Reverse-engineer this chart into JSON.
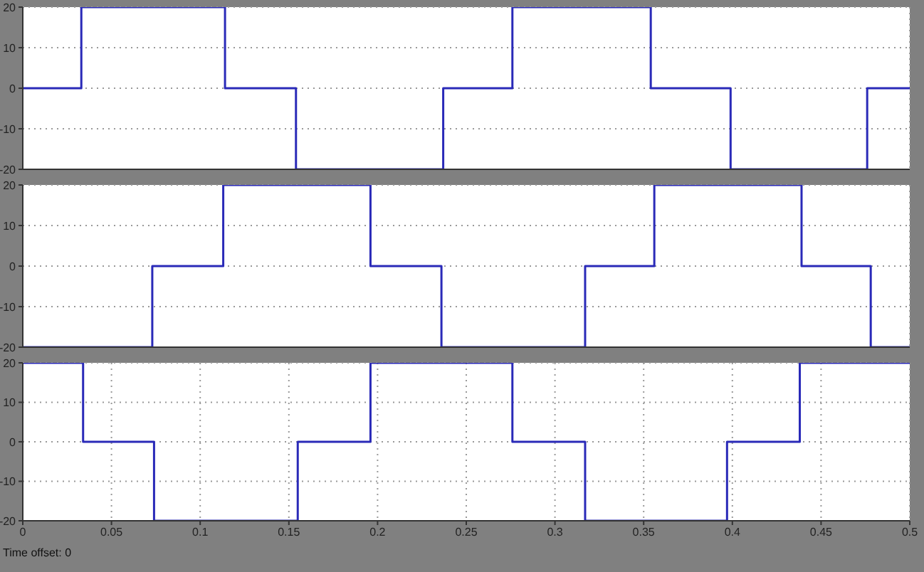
{
  "chart_data": [
    {
      "type": "step",
      "x": [
        0,
        0.033,
        0.114,
        0.154,
        0.237,
        0.276,
        0.354,
        0.399,
        0.476,
        0.5
      ],
      "series": [
        {
          "color": "#2a2ab8",
          "values": [
            0,
            20,
            0,
            -20,
            0,
            20,
            0,
            -20,
            0,
            0
          ]
        }
      ],
      "xlim": [
        0,
        0.5
      ],
      "xticks": [
        0,
        0.05,
        0.1,
        0.15,
        0.2,
        0.25,
        0.3,
        0.35,
        0.4,
        0.45,
        0.5
      ],
      "ylim": [
        -20,
        20
      ],
      "yticks": [
        -20,
        -10,
        0,
        10,
        20
      ],
      "grid": true,
      "marker": "none",
      "tick_labels": "y"
    },
    {
      "type": "step",
      "x": [
        0,
        0.073,
        0.113,
        0.196,
        0.236,
        0.317,
        0.356,
        0.439,
        0.478,
        0.5
      ],
      "series": [
        {
          "color": "#2a2ab8",
          "values": [
            -20,
            0,
            20,
            0,
            -20,
            0,
            20,
            0,
            -20,
            -20
          ]
        }
      ],
      "xlim": [
        0,
        0.5
      ],
      "xticks": [
        0,
        0.05,
        0.1,
        0.15,
        0.2,
        0.25,
        0.3,
        0.35,
        0.4,
        0.45,
        0.5
      ],
      "ylim": [
        -20,
        20
      ],
      "yticks": [
        -20,
        -10,
        0,
        10,
        20
      ],
      "grid": true,
      "marker": "none",
      "tick_labels": "y"
    },
    {
      "type": "step",
      "x": [
        0,
        0.034,
        0.074,
        0.155,
        0.196,
        0.276,
        0.317,
        0.397,
        0.438,
        0.5
      ],
      "series": [
        {
          "color": "#2a2ab8",
          "values": [
            20,
            0,
            -20,
            0,
            20,
            0,
            -20,
            0,
            20,
            20
          ]
        }
      ],
      "xlim": [
        0,
        0.5
      ],
      "xticks": [
        0,
        0.05,
        0.1,
        0.15,
        0.2,
        0.25,
        0.3,
        0.35,
        0.4,
        0.45,
        0.5
      ],
      "ylim": [
        -20,
        20
      ],
      "yticks": [
        -20,
        -10,
        0,
        10,
        20
      ],
      "grid": true,
      "marker": "none",
      "annotations": [
        "Time offset: 0"
      ]
    }
  ]
}
